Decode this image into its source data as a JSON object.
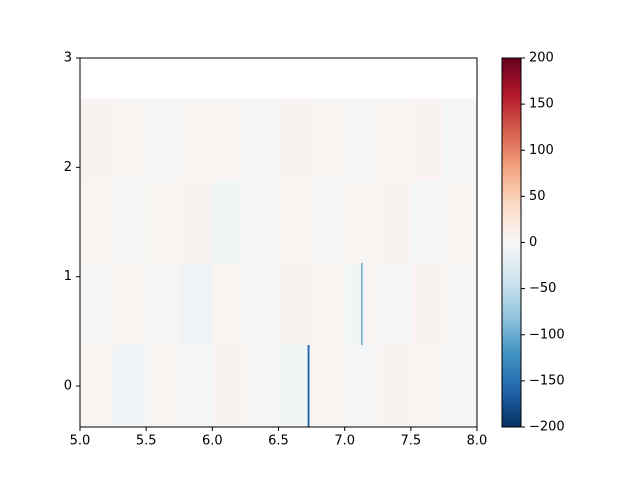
{
  "chart_data": {
    "type": "heatmap",
    "xlim": [
      5,
      8
    ],
    "ylim": [
      -0.375,
      3
    ],
    "xticks": [
      {
        "value": 5,
        "label": "5.0"
      },
      {
        "value": 5.5,
        "label": "5.5"
      },
      {
        "value": 6,
        "label": "6.0"
      },
      {
        "value": 6.5,
        "label": "6.5"
      },
      {
        "value": 7,
        "label": "7.0"
      },
      {
        "value": 7.5,
        "label": "7.5"
      },
      {
        "value": 8,
        "label": "8.0"
      }
    ],
    "yticks": [
      0,
      1,
      2,
      3
    ],
    "y_edges": [
      -0.375,
      0.375,
      1.125,
      1.875,
      2.625
    ],
    "rows": [
      {
        "bins": [
          5,
          5.25,
          5.5,
          5.75,
          6,
          6.25,
          6.5,
          6.72,
          6.735,
          7,
          7.25,
          7.5,
          7.75,
          8
        ],
        "values": [
          4,
          -6,
          5,
          -4,
          6,
          3,
          -5,
          -160,
          5,
          -4,
          6,
          4,
          -3
        ]
      },
      {
        "bins": [
          5,
          5.25,
          5.5,
          5.75,
          6,
          6.25,
          6.5,
          6.75,
          7,
          7.125,
          7.135,
          7.25,
          7.5,
          7.75,
          8
        ],
        "values": [
          -4,
          5,
          3,
          -6,
          4,
          -3,
          6,
          4,
          -5,
          -110,
          5,
          -4,
          6,
          3
        ]
      },
      {
        "bins": [
          5,
          5.25,
          5.5,
          5.75,
          6,
          6.25,
          6.5,
          6.75,
          7,
          7.25,
          7.5,
          7.75,
          8
        ],
        "values": [
          5,
          -3,
          4,
          6,
          -5,
          3,
          4,
          -4,
          5,
          6,
          -3,
          4
        ]
      },
      {
        "bins": [
          5,
          5.25,
          5.5,
          5.75,
          6,
          6.25,
          6.5,
          6.75,
          7,
          7.25,
          7.5,
          7.75,
          8
        ],
        "values": [
          6,
          4,
          -3,
          5,
          4,
          -4,
          6,
          5,
          -3,
          4,
          6,
          -4
        ]
      }
    ],
    "colormap": [
      "#053061",
      "#2166ac",
      "#4393c3",
      "#92c5de",
      "#d1e5f0",
      "#f7f7f7",
      "#fddbc7",
      "#f4a582",
      "#d6604d",
      "#b2182b",
      "#67001f"
    ],
    "clim": [
      -200,
      200
    ],
    "cticks": [
      {
        "value": -200,
        "label": "−200"
      },
      {
        "value": -150,
        "label": "−150"
      },
      {
        "value": -100,
        "label": "−100"
      },
      {
        "value": -50,
        "label": "−50"
      },
      0,
      50,
      100,
      150,
      200
    ]
  }
}
